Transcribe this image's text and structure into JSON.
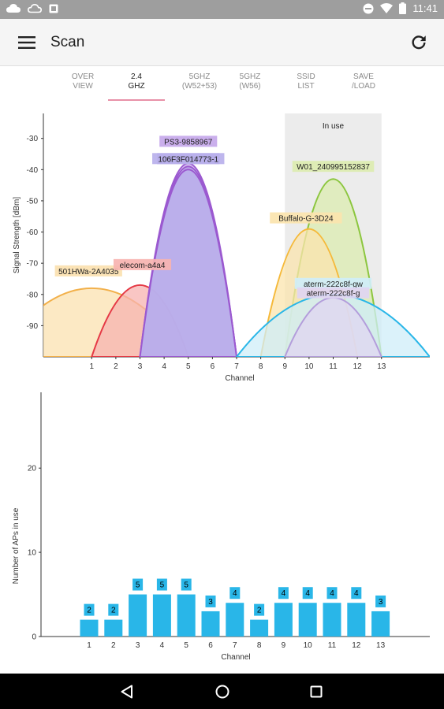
{
  "status_bar": {
    "time": "11:41",
    "left_icons": [
      "cloud-icon",
      "cloud-outline-icon",
      "notification-square-icon"
    ],
    "right_icons": [
      "do-not-disturb-icon",
      "wifi-icon",
      "battery-icon"
    ]
  },
  "app_bar": {
    "title": "Scan"
  },
  "tabs": [
    {
      "line1": "OVER",
      "line2": "VIEW",
      "active": false
    },
    {
      "line1": "2.4",
      "line2": "GHZ",
      "active": true
    },
    {
      "line1": "5GHZ",
      "line2": "(W52+53)",
      "active": false
    },
    {
      "line1": "5GHZ",
      "line2": "(W56)",
      "active": false
    },
    {
      "line1": "SSID",
      "line2": "LIST",
      "active": false
    },
    {
      "line1": "SAVE",
      "line2": "/LOAD",
      "active": false
    }
  ],
  "colors": {
    "accent": "#e891a8",
    "bar": "#29b6e8",
    "in_use": "#ececec"
  },
  "chart_data": [
    {
      "type": "area",
      "ylabel": "Signal Strength [dBm]",
      "xlabel": "Channel",
      "ylim": [
        -100,
        -22
      ],
      "xlim": [
        -1,
        15
      ],
      "yticks": [
        -30,
        -40,
        -50,
        -60,
        -70,
        -80,
        -90
      ],
      "xticks": [
        1,
        2,
        3,
        4,
        5,
        6,
        7,
        8,
        9,
        10,
        11,
        12,
        13
      ],
      "highlight": {
        "label": "In use",
        "from": 9,
        "to": 13
      },
      "series": [
        {
          "name": "501HWa-2A4035",
          "channel": 1,
          "dbm": -78,
          "width": 4,
          "stroke": "#f2b04a",
          "fill": "#fbe1b0"
        },
        {
          "name": "elecom-a4a4",
          "channel": 3,
          "dbm": -77,
          "width": 2,
          "stroke": "#e53945",
          "fill": "#f7b3b0"
        },
        {
          "name": "PS3-9858967",
          "channel": 5,
          "dbm": -38,
          "width": 2,
          "stroke": "#9b59d0",
          "fill": "#c5a8ea"
        },
        {
          "name": "106F3F014773",
          "channel": 5,
          "dbm": -39,
          "width": 2,
          "stroke": "#9b59d0",
          "fill": "#b7a6e6"
        },
        {
          "name": "106F3F014773-1",
          "channel": 5,
          "dbm": -40,
          "width": 2,
          "stroke": "#9b59d0",
          "fill": "#b9b0ec"
        },
        {
          "name": "W01_240995152837",
          "channel": 11,
          "dbm": -43,
          "width": 2,
          "stroke": "#8cc63f",
          "fill": "#dcecb0"
        },
        {
          "name": "Buffalo-G-3D24",
          "channel": 10,
          "dbm": -59,
          "width": 2,
          "stroke": "#f5b93a",
          "fill": "#fbe4ae"
        },
        {
          "name": "aterm-222c8f-gw",
          "channel": 11,
          "dbm": -80,
          "width": 4,
          "stroke": "#29b6e8",
          "fill": "#cfeef8"
        },
        {
          "name": "aterm-222c8f-g",
          "channel": 11,
          "dbm": -81,
          "width": 2,
          "stroke": "#b39ddb",
          "fill": "#e0d5f2"
        }
      ]
    },
    {
      "type": "bar",
      "ylabel": "Number of APs in use",
      "xlabel": "Channel",
      "ylim": [
        0,
        29
      ],
      "yticks": [
        0,
        10,
        20
      ],
      "categories": [
        "1",
        "2",
        "3",
        "4",
        "5",
        "6",
        "7",
        "8",
        "9",
        "10",
        "11",
        "12",
        "13"
      ],
      "values": [
        2,
        2,
        5,
        5,
        5,
        3,
        4,
        2,
        4,
        4,
        4,
        4,
        3
      ]
    }
  ]
}
